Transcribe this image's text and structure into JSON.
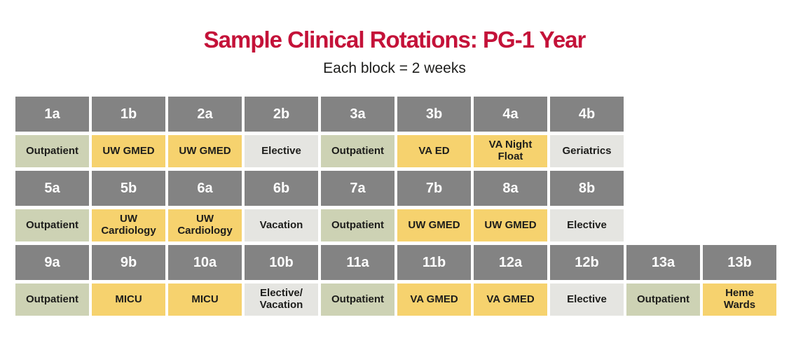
{
  "title": "Sample Clinical Rotations: PG-1 Year",
  "subtitle": "Each block = 2 weeks",
  "colors": {
    "page_bg": "#ffffff",
    "accent_red": "#c41239",
    "block_header_bg": "#838383",
    "block_header_text": "#ffffff",
    "green_bg": "#cdd2b4",
    "gold_bg": "#f6d26e",
    "gray_bg": "#e5e5e1",
    "cell_text": "#1d1d1b"
  },
  "rows": [
    {
      "blocks": [
        {
          "id": "1a",
          "label": "Outpatient",
          "type": "green"
        },
        {
          "id": "1b",
          "label": "UW GMED",
          "type": "gold"
        },
        {
          "id": "2a",
          "label": "UW GMED",
          "type": "gold"
        },
        {
          "id": "2b",
          "label": "Elective",
          "type": "gray"
        },
        {
          "id": "3a",
          "label": "Outpatient",
          "type": "green"
        },
        {
          "id": "3b",
          "label": "VA ED",
          "type": "gold"
        },
        {
          "id": "4a",
          "label": "VA Night\nFloat",
          "type": "gold"
        },
        {
          "id": "4b",
          "label": "Geriatrics",
          "type": "gray"
        }
      ]
    },
    {
      "blocks": [
        {
          "id": "5a",
          "label": "Outpatient",
          "type": "green"
        },
        {
          "id": "5b",
          "label": "UW\nCardiology",
          "type": "gold"
        },
        {
          "id": "6a",
          "label": "UW\nCardiology",
          "type": "gold"
        },
        {
          "id": "6b",
          "label": "Vacation",
          "type": "gray"
        },
        {
          "id": "7a",
          "label": "Outpatient",
          "type": "green"
        },
        {
          "id": "7b",
          "label": "UW GMED",
          "type": "gold"
        },
        {
          "id": "8a",
          "label": "UW GMED",
          "type": "gold"
        },
        {
          "id": "8b",
          "label": "Elective",
          "type": "gray"
        }
      ]
    },
    {
      "blocks": [
        {
          "id": "9a",
          "label": "Outpatient",
          "type": "green"
        },
        {
          "id": "9b",
          "label": "MICU",
          "type": "gold"
        },
        {
          "id": "10a",
          "label": "MICU",
          "type": "gold"
        },
        {
          "id": "10b",
          "label": "Elective/\nVacation",
          "type": "gray"
        },
        {
          "id": "11a",
          "label": "Outpatient",
          "type": "green"
        },
        {
          "id": "11b",
          "label": "VA GMED",
          "type": "gold"
        },
        {
          "id": "12a",
          "label": "VA GMED",
          "type": "gold"
        },
        {
          "id": "12b",
          "label": "Elective",
          "type": "gray"
        },
        {
          "id": "13a",
          "label": "Outpatient",
          "type": "green"
        },
        {
          "id": "13b",
          "label": "Heme\nWards",
          "type": "gold"
        }
      ]
    }
  ]
}
